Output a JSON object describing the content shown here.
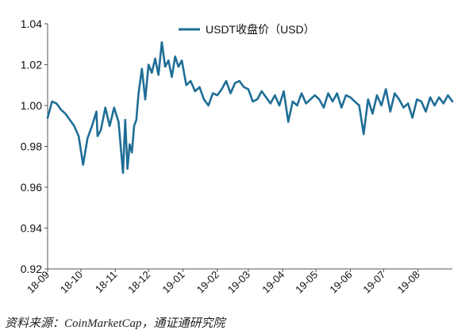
{
  "colors": {
    "series": "#1f6e96",
    "axis": "#555555",
    "text": "#111111",
    "grid": "#e6e6e6"
  },
  "chart_data": {
    "type": "line",
    "title": "",
    "xlabel": "",
    "ylabel": "",
    "ylim": [
      0.92,
      1.04
    ],
    "yticks": [
      "0.92",
      "0.94",
      "0.96",
      "0.98",
      "1.00",
      "1.02",
      "1.04"
    ],
    "xticks": [
      "18-09",
      "18-10",
      "18-11",
      "18-12",
      "19-01",
      "19-02",
      "19-03",
      "19-04",
      "19-05",
      "19-06",
      "19-07",
      "19-08"
    ],
    "grid": false,
    "legend": {
      "position": "top-center",
      "entries": [
        "USDT收盘价（USD）"
      ]
    },
    "series": [
      {
        "name": "USDT收盘价（USD）",
        "x": [
          "2018-09-01",
          "2018-09-05",
          "2018-09-09",
          "2018-09-13",
          "2018-09-17",
          "2018-09-21",
          "2018-09-25",
          "2018-09-29",
          "2018-10-03",
          "2018-10-07",
          "2018-10-11",
          "2018-10-15",
          "2018-10-16",
          "2018-10-19",
          "2018-10-23",
          "2018-10-27",
          "2018-10-31",
          "2018-11-04",
          "2018-11-08",
          "2018-11-10",
          "2018-11-12",
          "2018-11-14",
          "2018-11-16",
          "2018-11-18",
          "2018-11-20",
          "2018-11-22",
          "2018-11-25",
          "2018-11-28",
          "2018-12-01",
          "2018-12-04",
          "2018-12-07",
          "2018-12-10",
          "2018-12-13",
          "2018-12-16",
          "2018-12-19",
          "2018-12-22",
          "2018-12-25",
          "2018-12-28",
          "2018-12-31",
          "2019-01-04",
          "2019-01-08",
          "2019-01-12",
          "2019-01-16",
          "2019-01-20",
          "2019-01-24",
          "2019-01-28",
          "2019-02-01",
          "2019-02-05",
          "2019-02-09",
          "2019-02-13",
          "2019-02-17",
          "2019-02-21",
          "2019-02-25",
          "2019-03-01",
          "2019-03-05",
          "2019-03-09",
          "2019-03-13",
          "2019-03-17",
          "2019-03-21",
          "2019-03-25",
          "2019-03-29",
          "2019-04-02",
          "2019-04-06",
          "2019-04-10",
          "2019-04-14",
          "2019-04-18",
          "2019-04-22",
          "2019-04-26",
          "2019-04-30",
          "2019-05-04",
          "2019-05-08",
          "2019-05-12",
          "2019-05-16",
          "2019-05-20",
          "2019-05-24",
          "2019-05-28",
          "2019-06-01",
          "2019-06-05",
          "2019-06-09",
          "2019-06-13",
          "2019-06-17",
          "2019-06-21",
          "2019-06-25",
          "2019-06-29",
          "2019-07-03",
          "2019-07-07",
          "2019-07-11",
          "2019-07-15",
          "2019-07-19",
          "2019-07-23",
          "2019-07-27",
          "2019-07-31",
          "2019-08-04",
          "2019-08-08",
          "2019-08-12",
          "2019-08-16",
          "2019-08-20",
          "2019-08-24",
          "2019-08-28",
          "2019-09-01"
        ],
        "values": [
          0.994,
          1.002,
          1.001,
          0.998,
          0.996,
          0.993,
          0.99,
          0.985,
          0.971,
          0.984,
          0.99,
          0.997,
          0.985,
          0.988,
          0.999,
          0.99,
          0.999,
          0.992,
          0.967,
          0.993,
          0.969,
          0.981,
          0.977,
          0.99,
          0.993,
          1.006,
          1.018,
          1.003,
          1.02,
          1.016,
          1.023,
          1.015,
          1.031,
          1.019,
          1.022,
          1.014,
          1.024,
          1.019,
          1.022,
          1.01,
          1.012,
          1.007,
          1.009,
          1.003,
          1.0,
          1.006,
          1.005,
          1.008,
          1.012,
          1.006,
          1.011,
          1.012,
          1.009,
          1.008,
          1.002,
          1.003,
          1.007,
          1.004,
          1.001,
          1.005,
          1.0,
          1.007,
          0.992,
          1.002,
          1.0,
          1.006,
          1.001,
          1.003,
          1.005,
          1.003,
          0.999,
          1.006,
          1.002,
          1.006,
          0.999,
          1.005,
          1.004,
          1.002,
          1.0,
          0.986,
          1.003,
          0.996,
          1.005,
          1.0,
          1.008,
          0.997,
          1.006,
          1.003,
          0.999,
          1.001,
          0.994,
          1.003,
          1.002,
          0.997,
          1.004,
          1.0,
          1.004,
          1.001,
          1.005,
          1.002
        ]
      }
    ]
  },
  "footer": {
    "source": "资料来源：CoinMarketCap，通证通研究院"
  }
}
